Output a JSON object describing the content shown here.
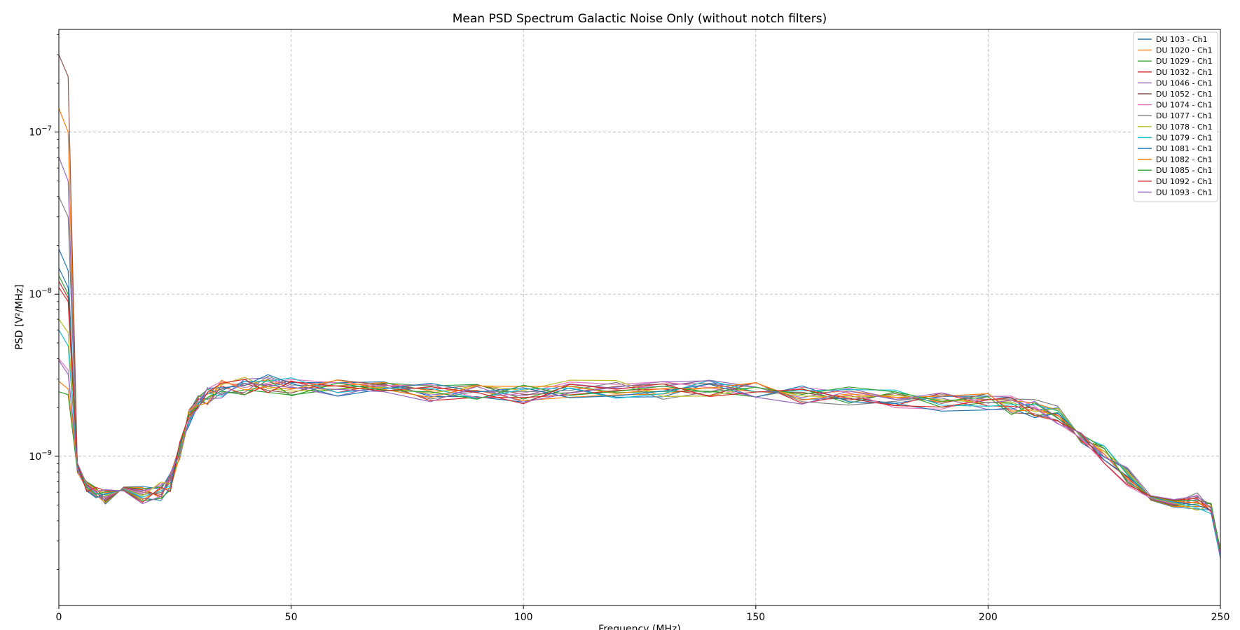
{
  "chart_data": {
    "type": "line",
    "title": "Mean PSD Spectrum Galactic Noise Only (without notch filters)",
    "xlabel": "Frequency (MHz)",
    "ylabel": "PSD [V²/MHz]",
    "xlim": [
      0,
      250
    ],
    "ylim": [
      1.2e-10,
      4.3e-07
    ],
    "yscale": "log",
    "grid": true,
    "legend_position": "upper-right",
    "x_ticks": [
      "0",
      "50",
      "100",
      "150",
      "200",
      "250"
    ],
    "y_ticks": [
      {
        "base": "10",
        "exp": "−7"
      },
      {
        "base": "10",
        "exp": "−8"
      },
      {
        "base": "10",
        "exp": "−9"
      }
    ],
    "x": [
      0,
      2,
      4,
      6,
      8,
      10,
      14,
      18,
      22,
      24,
      26,
      28,
      30,
      32,
      35,
      40,
      45,
      50,
      60,
      70,
      80,
      90,
      100,
      110,
      120,
      130,
      140,
      150,
      160,
      170,
      180,
      190,
      200,
      205,
      210,
      215,
      220,
      225,
      230,
      235,
      240,
      245,
      248,
      250
    ],
    "series": [
      {
        "name": "DU 103 - Ch1",
        "color": "#1f77b4",
        "y0": 1.9e-08,
        "y2": 1.4e-08
      },
      {
        "name": "DU 1020 - Ch1",
        "color": "#ff7f0e",
        "y0": 1.4e-07,
        "y2": 1e-07
      },
      {
        "name": "DU 1029 - Ch1",
        "color": "#2ca02c",
        "y0": 2.5e-09,
        "y2": 2.4e-09
      },
      {
        "name": "DU 1032 - Ch1",
        "color": "#d62728",
        "y0": 1.1e-08,
        "y2": 9e-09
      },
      {
        "name": "DU 1046 - Ch1",
        "color": "#9467bd",
        "y0": 7e-08,
        "y2": 5e-08
      },
      {
        "name": "DU 1052 - Ch1",
        "color": "#8c564b",
        "y0": 3e-07,
        "y2": 2.2e-07
      },
      {
        "name": "DU 1074 - Ch1",
        "color": "#e377c2",
        "y0": 4e-09,
        "y2": 3.4e-09
      },
      {
        "name": "DU 1077 - Ch1",
        "color": "#7f7f7f",
        "y0": 4e-08,
        "y2": 3e-08
      },
      {
        "name": "DU 1078 - Ch1",
        "color": "#bcbd22",
        "y0": 7e-09,
        "y2": 5.8e-09
      },
      {
        "name": "DU 1079 - Ch1",
        "color": "#17becf",
        "y0": 6e-09,
        "y2": 4.8e-09
      },
      {
        "name": "DU 1081 - Ch1",
        "color": "#1f77b4",
        "y0": 1.45e-08,
        "y2": 1.1e-08
      },
      {
        "name": "DU 1082 - Ch1",
        "color": "#ff7f0e",
        "y0": 2.9e-09,
        "y2": 2.6e-09
      },
      {
        "name": "DU 1085 - Ch1",
        "color": "#2ca02c",
        "y0": 1.3e-08,
        "y2": 1e-08
      },
      {
        "name": "DU 1092 - Ch1",
        "color": "#d62728",
        "y0": 1.2e-08,
        "y2": 9.5e-09
      },
      {
        "name": "DU 1093 - Ch1",
        "color": "#9467bd",
        "y0": 3.9e-09,
        "y2": 3.2e-09
      }
    ],
    "base_profile": [
      null,
      null,
      8.5e-10,
      6.5e-10,
      6e-10,
      5.8e-10,
      5.7e-10,
      5.8e-10,
      6.2e-10,
      7e-10,
      1.1e-09,
      1.7e-09,
      2.1e-09,
      2.4e-09,
      2.6e-09,
      2.7e-09,
      2.8e-09,
      2.7e-09,
      2.6e-09,
      2.55e-09,
      2.5e-09,
      2.45e-09,
      2.45e-09,
      2.6e-09,
      2.6e-09,
      2.6e-09,
      2.6e-09,
      2.5e-09,
      2.4e-09,
      2.35e-09,
      2.25e-09,
      2.2e-09,
      2.15e-09,
      2.1e-09,
      2e-09,
      1.8e-09,
      1.4e-09,
      1.05e-09,
      7.5e-10,
      6.2e-10,
      5.6e-10,
      5.3e-10,
      4.8e-10,
      2.5e-10
    ]
  }
}
